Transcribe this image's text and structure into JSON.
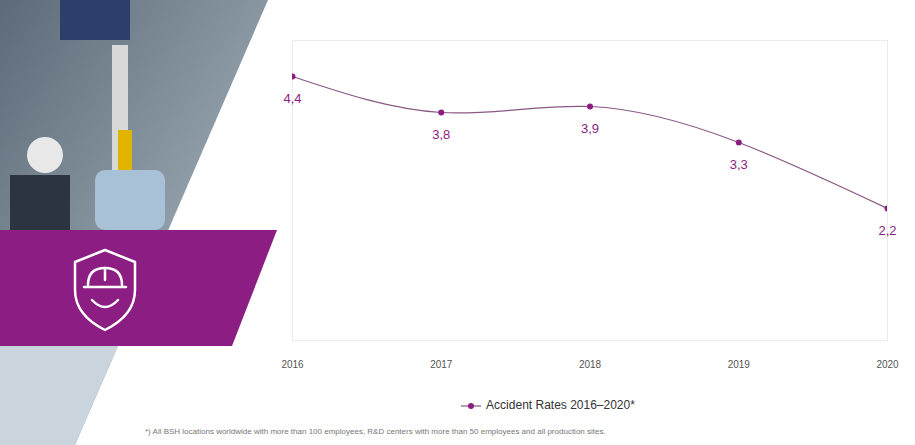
{
  "chart_data": {
    "type": "line",
    "x": [
      2016,
      2017,
      2018,
      2019,
      2020
    ],
    "series": [
      {
        "name": "Accident Rates 2016–2020*",
        "color": "#8c1d82",
        "values": [
          4.4,
          3.8,
          3.9,
          3.3,
          2.2
        ],
        "value_labels": [
          "4,4",
          "3,8",
          "3,9",
          "3,3",
          "2,2"
        ],
        "marker": "circle"
      }
    ],
    "xlim": [
      2016,
      2020
    ],
    "xticks": [
      2016,
      2017,
      2018,
      2019,
      2020
    ],
    "ylim": [
      0,
      5
    ],
    "tick_labels": "x",
    "data_labels": true,
    "grid": false,
    "legend": "bottom",
    "footnote": "*) All BSH locations worldwide with more than 100 employees, R&D centers with more than 50 employees and all production sites."
  }
}
